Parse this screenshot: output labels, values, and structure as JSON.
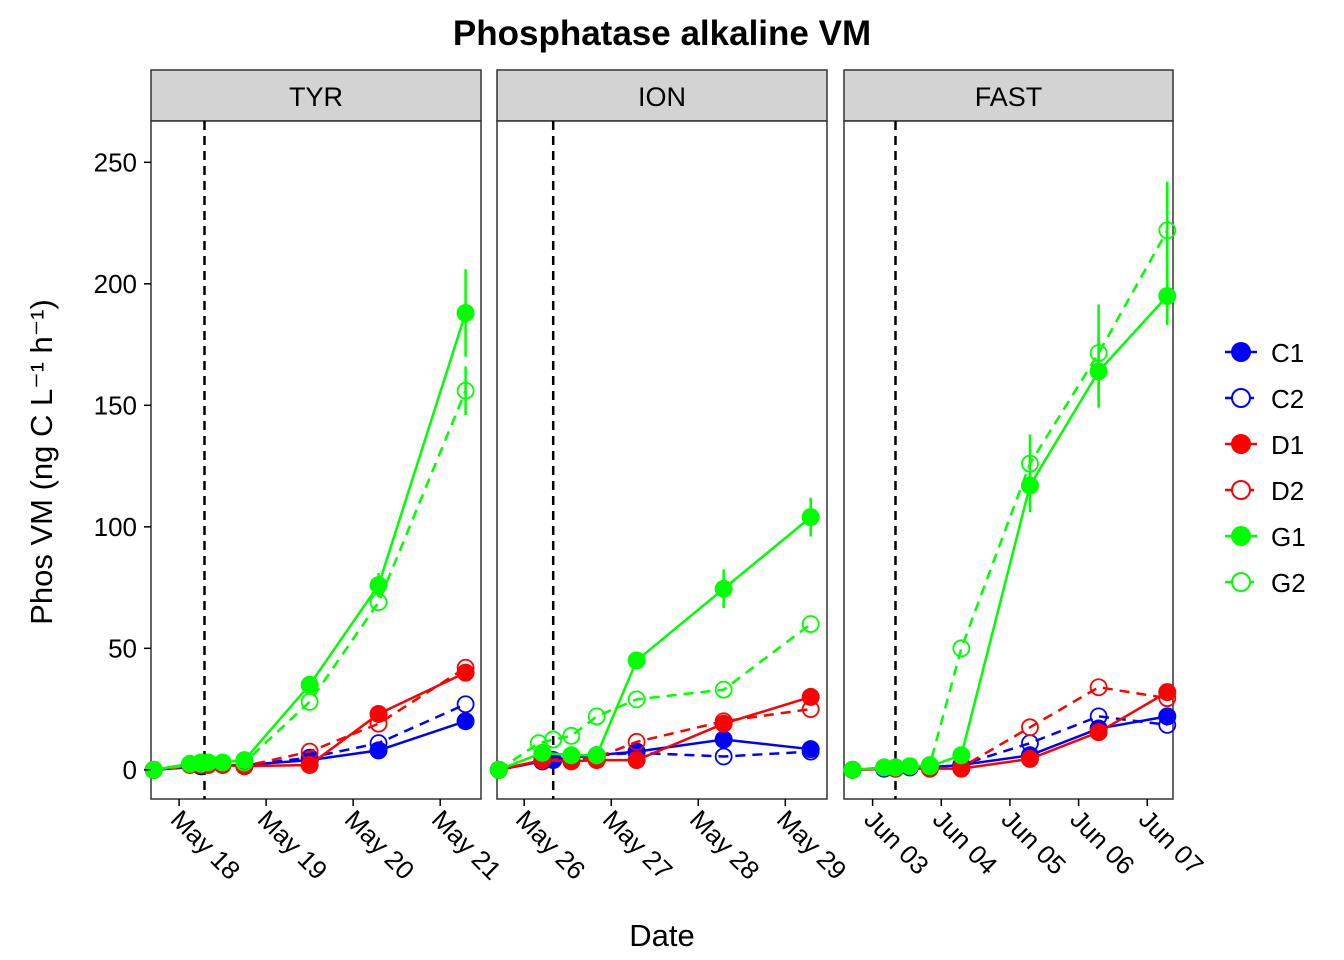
{
  "chart_data": {
    "type": "line",
    "title": "Phosphatase alkaline VM",
    "xlabel": "Date",
    "ylabel": "Phos VM",
    "ylabel_unit": "ng C L⁻¹ h⁻¹",
    "ylim": [
      -12,
      267
    ],
    "yticks": [
      0,
      50,
      100,
      150,
      200,
      250
    ],
    "grid": false,
    "legend_position": "right",
    "legend": [
      {
        "name": "C1",
        "color": "#0000ff",
        "filled": true,
        "dash": false
      },
      {
        "name": "C2",
        "color": "#0000ff",
        "filled": false,
        "dash": true
      },
      {
        "name": "D1",
        "color": "#ff0000",
        "filled": true,
        "dash": false
      },
      {
        "name": "D2",
        "color": "#ff0000",
        "filled": false,
        "dash": true
      },
      {
        "name": "G1",
        "color": "#00ff00",
        "filled": true,
        "dash": false
      },
      {
        "name": "G2",
        "color": "#00ff00",
        "filled": false,
        "dash": true
      }
    ],
    "panels": [
      {
        "name": "TYR",
        "xlim": [
          "2016-05-17 16:15",
          "2016-05-21 11:15"
        ],
        "xticks": [
          {
            "date": "2016-05-18",
            "label": "May 18"
          },
          {
            "date": "2016-05-19",
            "label": "May 19"
          },
          {
            "date": "2016-05-20",
            "label": "May 20"
          },
          {
            "date": "2016-05-21",
            "label": "May 21"
          }
        ],
        "vline": "2016-05-18 07:00",
        "series": [
          {
            "name": "C1",
            "points": [
              [
                "2016-05-17 17:00",
                0
              ],
              [
                "2016-05-18 06:00",
                1.5
              ],
              [
                "2016-05-18 18:00",
                2
              ],
              [
                "2016-05-19 12:00",
                4
              ],
              [
                "2016-05-20 07:00",
                8
              ],
              [
                "2016-05-21 07:00",
                20
              ]
            ]
          },
          {
            "name": "C2",
            "points": [
              [
                "2016-05-17 17:00",
                0
              ],
              [
                "2016-05-18 06:00",
                1.5
              ],
              [
                "2016-05-18 18:00",
                2
              ],
              [
                "2016-05-19 12:00",
                5
              ],
              [
                "2016-05-20 07:00",
                11
              ],
              [
                "2016-05-21 07:00",
                27
              ]
            ]
          },
          {
            "name": "D1",
            "points": [
              [
                "2016-05-17 17:00",
                0
              ],
              [
                "2016-05-18 03:00",
                2
              ],
              [
                "2016-05-18 06:00",
                2
              ],
              [
                "2016-05-18 08:00",
                2
              ],
              [
                "2016-05-18 12:00",
                2
              ],
              [
                "2016-05-18 18:00",
                1.5
              ],
              [
                "2016-05-19 12:00",
                2
              ],
              [
                "2016-05-20 07:00",
                23
              ],
              [
                "2016-05-21 07:00",
                40
              ]
            ]
          },
          {
            "name": "D2",
            "points": [
              [
                "2016-05-17 17:00",
                0
              ],
              [
                "2016-05-18 06:00",
                2
              ],
              [
                "2016-05-18 18:00",
                1.5
              ],
              [
                "2016-05-19 12:00",
                7.5
              ],
              [
                "2016-05-20 07:00",
                19
              ],
              [
                "2016-05-21 07:00",
                42
              ]
            ]
          },
          {
            "name": "G1",
            "points": [
              [
                "2016-05-17 17:00",
                0
              ],
              [
                "2016-05-18 03:00",
                2.5
              ],
              [
                "2016-05-18 06:00",
                3
              ],
              [
                "2016-05-18 08:00",
                3
              ],
              [
                "2016-05-18 12:00",
                3
              ],
              [
                "2016-05-18 18:00",
                4
              ],
              [
                "2016-05-19 12:00",
                35
              ],
              [
                "2016-05-20 07:00",
                76
              ],
              [
                "2016-05-21 07:00",
                188
              ]
            ],
            "err": [
              [
                6,
                3
              ],
              [
                7,
                5
              ],
              [
                8,
                18
              ]
            ]
          },
          {
            "name": "G2",
            "points": [
              [
                "2016-05-17 17:00",
                0
              ],
              [
                "2016-05-18 06:00",
                2.5
              ],
              [
                "2016-05-18 18:00",
                3
              ],
              [
                "2016-05-19 12:00",
                28
              ],
              [
                "2016-05-20 07:00",
                69
              ],
              [
                "2016-05-21 07:00",
                156
              ]
            ],
            "err": [
              [
                5,
                10
              ]
            ]
          }
        ]
      },
      {
        "name": "ION",
        "xlim": [
          "2016-05-25 16:30",
          "2016-05-29 11:30"
        ],
        "xticks": [
          {
            "date": "2016-05-26",
            "label": "May 26"
          },
          {
            "date": "2016-05-27",
            "label": "May 27"
          },
          {
            "date": "2016-05-28",
            "label": "May 28"
          },
          {
            "date": "2016-05-29",
            "label": "May 29"
          }
        ],
        "vline": "2016-05-26 08:00",
        "series": [
          {
            "name": "C1",
            "points": [
              [
                "2016-05-25 17:00",
                0
              ],
              [
                "2016-05-26 05:00",
                3.5
              ],
              [
                "2016-05-26 08:00",
                4
              ],
              [
                "2016-05-26 13:00",
                5
              ],
              [
                "2016-05-26 20:00",
                6
              ],
              [
                "2016-05-27 07:00",
                7.5
              ],
              [
                "2016-05-28 07:00",
                12.5
              ],
              [
                "2016-05-29 07:00",
                8.5
              ]
            ]
          },
          {
            "name": "C2",
            "points": [
              [
                "2016-05-25 17:00",
                0
              ],
              [
                "2016-05-26 05:00",
                3.5
              ],
              [
                "2016-05-26 13:00",
                5.5
              ],
              [
                "2016-05-26 20:00",
                6
              ],
              [
                "2016-05-27 07:00",
                7
              ],
              [
                "2016-05-28 07:00",
                5.5
              ],
              [
                "2016-05-29 07:00",
                7.5
              ]
            ]
          },
          {
            "name": "D1",
            "points": [
              [
                "2016-05-25 17:00",
                0
              ],
              [
                "2016-05-26 05:00",
                4
              ],
              [
                "2016-05-26 13:00",
                3.5
              ],
              [
                "2016-05-26 20:00",
                4
              ],
              [
                "2016-05-27 07:00",
                4
              ],
              [
                "2016-05-28 07:00",
                19
              ],
              [
                "2016-05-29 07:00",
                30
              ]
            ]
          },
          {
            "name": "D2",
            "points": [
              [
                "2016-05-25 17:00",
                0
              ],
              [
                "2016-05-26 05:00",
                4
              ],
              [
                "2016-05-26 13:00",
                4.5
              ],
              [
                "2016-05-26 20:00",
                5
              ],
              [
                "2016-05-27 07:00",
                11.5
              ],
              [
                "2016-05-28 07:00",
                20
              ],
              [
                "2016-05-29 07:00",
                25
              ]
            ]
          },
          {
            "name": "G1",
            "points": [
              [
                "2016-05-25 17:00",
                0
              ],
              [
                "2016-05-26 05:00",
                7
              ],
              [
                "2016-05-26 13:00",
                6
              ],
              [
                "2016-05-26 20:00",
                6
              ],
              [
                "2016-05-27 07:00",
                45
              ],
              [
                "2016-05-28 07:00",
                74.5
              ],
              [
                "2016-05-29 07:00",
                104
              ]
            ],
            "err": [
              [
                5,
                8
              ],
              [
                6,
                8
              ]
            ]
          },
          {
            "name": "G2",
            "points": [
              [
                "2016-05-25 17:00",
                0
              ],
              [
                "2016-05-26 04:00",
                11
              ],
              [
                "2016-05-26 08:00",
                12.5
              ],
              [
                "2016-05-26 13:00",
                14
              ],
              [
                "2016-05-26 20:00",
                22
              ],
              [
                "2016-05-27 07:00",
                29
              ],
              [
                "2016-05-28 07:00",
                33
              ],
              [
                "2016-05-29 07:00",
                60
              ]
            ]
          }
        ]
      },
      {
        "name": "FAST",
        "xlim": [
          "2016-06-02 14:00",
          "2016-06-07 09:00"
        ],
        "xticks": [
          {
            "date": "2016-06-03",
            "label": "Jun 03"
          },
          {
            "date": "2016-06-04",
            "label": "Jun 04"
          },
          {
            "date": "2016-06-05",
            "label": "Jun 05"
          },
          {
            "date": "2016-06-06",
            "label": "Jun 06"
          },
          {
            "date": "2016-06-07",
            "label": "Jun 07"
          }
        ],
        "vline": "2016-06-03 08:00",
        "series": [
          {
            "name": "C1",
            "points": [
              [
                "2016-06-02 17:00",
                0
              ],
              [
                "2016-06-03 04:00",
                0.5
              ],
              [
                "2016-06-03 08:00",
                0.5
              ],
              [
                "2016-06-03 13:00",
                1
              ],
              [
                "2016-06-03 20:00",
                1
              ],
              [
                "2016-06-04 07:00",
                2
              ],
              [
                "2016-06-05 07:00",
                6
              ],
              [
                "2016-06-06 07:00",
                17
              ],
              [
                "2016-06-07 07:00",
                22
              ]
            ]
          },
          {
            "name": "C2",
            "points": [
              [
                "2016-06-02 17:00",
                0
              ],
              [
                "2016-06-03 08:00",
                0.5
              ],
              [
                "2016-06-03 20:00",
                1
              ],
              [
                "2016-06-04 07:00",
                2
              ],
              [
                "2016-06-05 07:00",
                11
              ],
              [
                "2016-06-06 07:00",
                22
              ],
              [
                "2016-06-07 07:00",
                18.5
              ]
            ]
          },
          {
            "name": "D1",
            "points": [
              [
                "2016-06-02 17:00",
                0
              ],
              [
                "2016-06-03 08:00",
                0.5
              ],
              [
                "2016-06-03 20:00",
                0.5
              ],
              [
                "2016-06-04 07:00",
                0.5
              ],
              [
                "2016-06-05 07:00",
                4.5
              ],
              [
                "2016-06-06 07:00",
                15.5
              ],
              [
                "2016-06-07 07:00",
                32
              ]
            ]
          },
          {
            "name": "D2",
            "points": [
              [
                "2016-06-02 17:00",
                0
              ],
              [
                "2016-06-03 08:00",
                0.5
              ],
              [
                "2016-06-03 20:00",
                0.5
              ],
              [
                "2016-06-04 07:00",
                1
              ],
              [
                "2016-06-05 07:00",
                17.5
              ],
              [
                "2016-06-06 07:00",
                34
              ],
              [
                "2016-06-07 07:00",
                29.5
              ]
            ]
          },
          {
            "name": "G1",
            "points": [
              [
                "2016-06-02 17:00",
                0
              ],
              [
                "2016-06-03 04:00",
                1
              ],
              [
                "2016-06-03 08:00",
                1
              ],
              [
                "2016-06-03 13:00",
                1.5
              ],
              [
                "2016-06-03 20:00",
                1.5
              ],
              [
                "2016-06-04 07:00",
                6
              ],
              [
                "2016-06-05 07:00",
                117
              ],
              [
                "2016-06-06 07:00",
                164
              ],
              [
                "2016-06-07 07:00",
                195
              ]
            ],
            "err": [
              [
                6,
                11
              ],
              [
                7,
                15
              ],
              [
                8,
                12
              ]
            ]
          },
          {
            "name": "G2",
            "points": [
              [
                "2016-06-02 17:00",
                0
              ],
              [
                "2016-06-03 08:00",
                1
              ],
              [
                "2016-06-03 20:00",
                2
              ],
              [
                "2016-06-04 07:00",
                50
              ],
              [
                "2016-06-05 07:00",
                126
              ],
              [
                "2016-06-06 07:00",
                171.5
              ],
              [
                "2016-06-07 07:00",
                222
              ]
            ],
            "err": [
              [
                4,
                12
              ],
              [
                5,
                20
              ],
              [
                6,
                20
              ]
            ]
          }
        ]
      }
    ]
  }
}
